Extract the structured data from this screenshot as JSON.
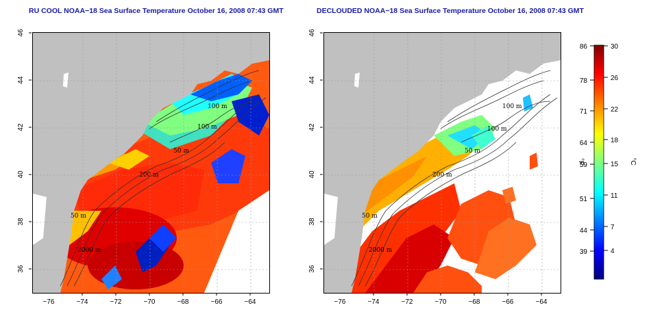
{
  "titles": {
    "left": "RU COOL NOAA−18 Sea Surface Temperature October 16, 2008 07:43 GMT",
    "right": "DECLOUDED NOAA−18 Sea Surface Temperature October 16, 2008 07:43 GMT"
  },
  "map": {
    "lon_ticks": [
      "−76",
      "−74",
      "−72",
      "−70",
      "−68",
      "−66",
      "−64"
    ],
    "lat_ticks": [
      "36",
      "38",
      "40",
      "42",
      "44",
      "46"
    ],
    "contour_labels": [
      "100 m",
      "100 m",
      "50 m",
      "200 m",
      "50 m",
      "2000 m"
    ],
    "land_color": "#c0c0c0",
    "grid": "dotted"
  },
  "colorbar": {
    "fahrenheit_ticks": [
      "86",
      "78",
      "71",
      "64",
      "59",
      "51",
      "44",
      "39"
    ],
    "celsius_ticks": [
      "30",
      "26",
      "22",
      "18",
      "15",
      "11",
      "7",
      "4"
    ],
    "unit_f": "°F",
    "unit_c": "°C",
    "stops": [
      "#00007f",
      "#0000ff",
      "#0080ff",
      "#00ffff",
      "#80ff80",
      "#ffff00",
      "#ff8000",
      "#ff0000",
      "#7f0000"
    ]
  }
}
